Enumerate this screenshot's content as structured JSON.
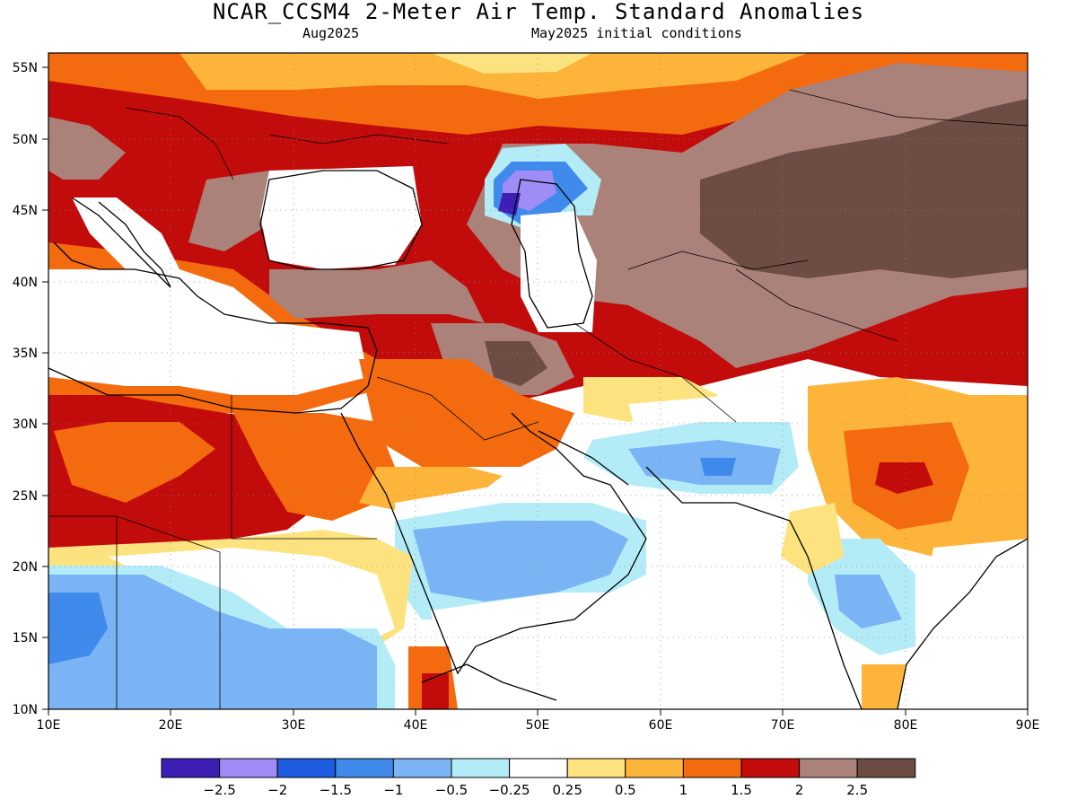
{
  "title": "NCAR_CCSM4 2-Meter Air Temp. Standard Anomalies",
  "valid_month": "Aug2025",
  "init_conditions": "May2025 initial conditions",
  "lat_labels": [
    "55N",
    "50N",
    "45N",
    "40N",
    "35N",
    "30N",
    "25N",
    "20N",
    "15N",
    "10N"
  ],
  "lon_labels": [
    "10E",
    "20E",
    "30E",
    "40E",
    "50E",
    "60E",
    "70E",
    "80E",
    "90E"
  ],
  "colorbar": {
    "colors": [
      "#3d1fb5",
      "#a08cf6",
      "#1e5de1",
      "#3f8aea",
      "#7ab4f4",
      "#b3ecf6",
      "#ffffff",
      "#fde37f",
      "#fcb43a",
      "#f46a0e",
      "#c20b0b",
      "#aa8279",
      "#6d4c43"
    ],
    "labels": [
      "-2.5",
      "-2",
      "-1.5",
      "-1",
      "-0.5",
      "-0.25",
      "0.25",
      "0.5",
      "1",
      "1.5",
      "2",
      "2.5"
    ]
  },
  "regions": [
    {
      "name": "north-africa-warm",
      "color": "#c20b0b"
    },
    {
      "name": "east-africa-cool",
      "color": "#7ab4f4"
    },
    {
      "name": "arabia-cool",
      "color": "#7ab4f4"
    },
    {
      "name": "central-asia-very-warm",
      "color": "#6d4c43"
    },
    {
      "name": "europe-warm",
      "color": "#c20b0b"
    },
    {
      "name": "caspian-cold",
      "color": "#3d1fb5"
    }
  ]
}
